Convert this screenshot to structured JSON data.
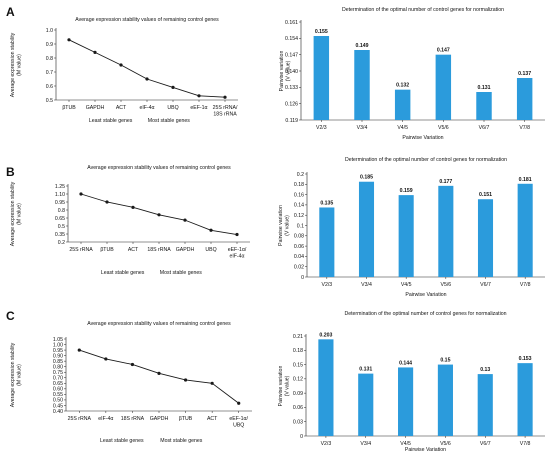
{
  "chart_data": [
    {
      "panel": "A",
      "type": "line",
      "title": "Average expression stability values of remaining control genes",
      "ylabel": "Average expression stability\n(M value)",
      "categories": [
        "βTUB",
        "GAPDH",
        "ACT",
        "eIF-4α",
        "UBQ",
        "eEF-1α",
        "25S rRNA/\n18S rRNA"
      ],
      "values": [
        0.93,
        0.84,
        0.75,
        0.65,
        0.59,
        0.53,
        0.52
      ],
      "ylim": [
        0.5,
        1.0
      ],
      "yticks": [
        "0.5",
        "0.6",
        "0.7",
        "0.8",
        "0.9",
        "1.0"
      ],
      "footer": [
        "Least stable genes",
        "Most stable genes"
      ]
    },
    {
      "panel": "A",
      "type": "bar",
      "title": "Determination of the optimal number of control genes for normalization",
      "xlabel": "Pairwise Variation",
      "ylabel": "Pairwise variation\n(V value)",
      "categories": [
        "V2/3",
        "V3/4",
        "V4/5",
        "V5/6",
        "V6/7",
        "V7/8"
      ],
      "values": [
        0.155,
        0.149,
        0.132,
        0.147,
        0.131,
        0.137
      ],
      "labels": [
        "0.155",
        "0.149",
        "0.132",
        "0.147",
        "0.131",
        "0.137"
      ],
      "ylim": [
        0.119,
        0.161
      ],
      "yticks": [
        "0.119",
        "0.126",
        "0.133",
        "0.140",
        "0.147",
        "0.154",
        "0.161"
      ]
    },
    {
      "panel": "B",
      "type": "line",
      "title": "Average expression stability values of remaining control genes",
      "ylabel": "Average expression stability\n(M value)",
      "categories": [
        "25S rRNA",
        "βTUB",
        "ACT",
        "18S rRNA",
        "GAPDH",
        "UBQ",
        "eEF-1α/\neIF-4α"
      ],
      "values": [
        1.1,
        0.95,
        0.85,
        0.71,
        0.61,
        0.42,
        0.34
      ],
      "ylim": [
        0.2,
        1.25
      ],
      "yticks": [
        "0.2",
        "0.35",
        "0.5",
        "0.65",
        "0.8",
        "0.95",
        "1.10",
        "1.25"
      ],
      "footer": [
        "Least stable genes",
        "Most stable genes"
      ]
    },
    {
      "panel": "B",
      "type": "bar",
      "title": "Determination of the optimal number of control genes for normalization",
      "xlabel": "Pairwise Variation",
      "ylabel": "Pairwise variation\n(V value)",
      "categories": [
        "V2/3",
        "V3/4",
        "V4/5",
        "V5/6",
        "V6/7",
        "V7/8"
      ],
      "values": [
        0.135,
        0.185,
        0.159,
        0.177,
        0.151,
        0.181
      ],
      "labels": [
        "0.135",
        "0.185",
        "0.159",
        "0.177",
        "0.151",
        "0.181"
      ],
      "ylim": [
        0,
        0.2
      ],
      "yticks": [
        "0",
        "0.02",
        "0.04",
        "0.06",
        "0.08",
        "0.1",
        "0.12",
        "0.14",
        "0.16",
        "0.18",
        "0.2"
      ]
    },
    {
      "panel": "C",
      "type": "line",
      "title": "Average expression stability values of remaining control genes",
      "ylabel": "Average expression stability\n(M value)",
      "categories": [
        "25S rRNA",
        "eIF-4α",
        "18S rRNA",
        "GAPDH",
        "βTUB",
        "ACT",
        "eEF-1α/\nUBQ"
      ],
      "values": [
        0.95,
        0.87,
        0.82,
        0.74,
        0.68,
        0.65,
        0.47
      ],
      "ylim": [
        0.4,
        1.05
      ],
      "yticks": [
        "0.40",
        "0.45",
        "0.50",
        "0.55",
        "0.60",
        "0.65",
        "0.70",
        "0.75",
        "0.80",
        "0.85",
        "0.90",
        "0.95",
        "1.00",
        "1.05"
      ],
      "footer": [
        "Least stable genes",
        "Most stable genes"
      ]
    },
    {
      "panel": "C",
      "type": "bar",
      "title": "Determination of the optimal number of control genes for normalization",
      "xlabel": "Pairwise Variation",
      "ylabel": "Pairwise variation\n(V value)",
      "categories": [
        "V2/3",
        "V3/4",
        "V4/5",
        "V5/6",
        "V6/7",
        "V7/8"
      ],
      "values": [
        0.203,
        0.131,
        0.144,
        0.15,
        0.13,
        0.153
      ],
      "labels": [
        "0.203",
        "0.131",
        "0.144",
        "0.15",
        "0.13",
        "0.153"
      ],
      "ylim": [
        0,
        0.21
      ],
      "yticks": [
        "0",
        "0.03",
        "0.06",
        "0.09",
        "0.12",
        "0.15",
        "0.18",
        "0.21"
      ]
    }
  ],
  "colors": {
    "bar": "#2b9bdc",
    "line": "#1a1a1a",
    "axis": "#222222"
  }
}
